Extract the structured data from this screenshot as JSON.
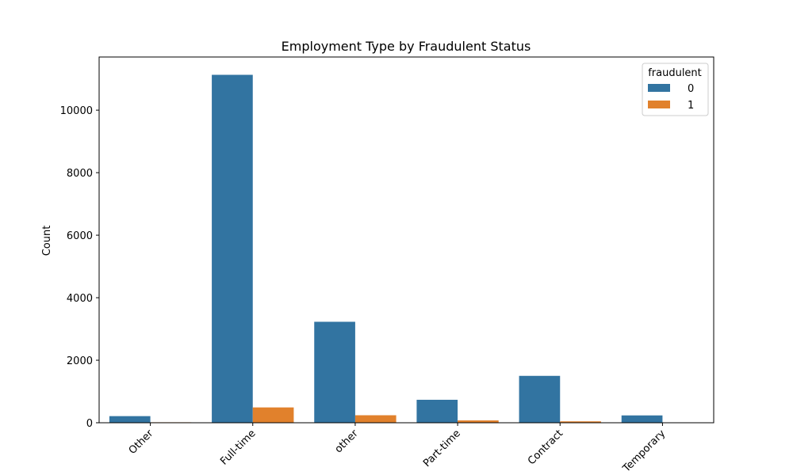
{
  "chart_data": {
    "type": "bar",
    "title": "Employment Type by Fraudulent Status",
    "xlabel": "",
    "ylabel": "Count",
    "categories": [
      "Other",
      "Full-time",
      "other",
      "Part-time",
      "Contract",
      "Temporary"
    ],
    "series": [
      {
        "name": "0",
        "values": [
          212,
          11130,
          3230,
          735,
          1500,
          235
        ],
        "color": "#3274a1"
      },
      {
        "name": "1",
        "values": [
          15,
          490,
          240,
          75,
          45,
          0
        ],
        "color": "#e1812c"
      }
    ],
    "ylim": [
      0,
      11700
    ],
    "yticks": [
      0,
      2000,
      4000,
      6000,
      8000,
      10000
    ],
    "grid": false,
    "legend": {
      "title": "fraudulent",
      "placement": "top-right"
    }
  }
}
